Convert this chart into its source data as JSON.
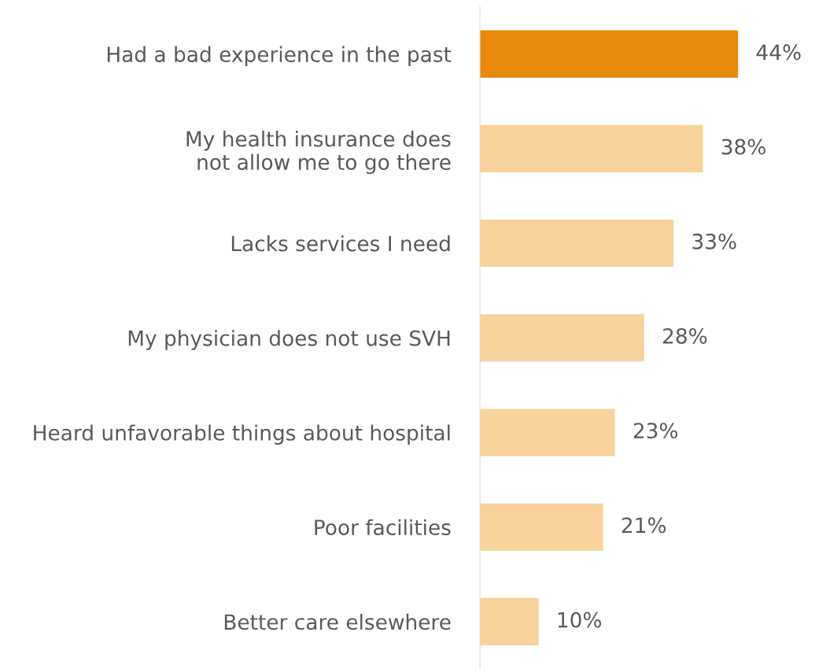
{
  "chart_data": {
    "type": "bar",
    "orientation": "horizontal",
    "categories": [
      "Had a bad experience in the past",
      "My health insurance does\nnot allow me to go there",
      "Lacks services I need",
      "My physician does not use SVH",
      "Heard unfavorable things about hospital",
      "Poor facilities",
      "Better care elsewhere"
    ],
    "values": [
      44,
      38,
      33,
      28,
      23,
      21,
      10
    ],
    "value_labels": [
      "44%",
      "38%",
      "33%",
      "28%",
      "23%",
      "21%",
      "10%"
    ],
    "colors": [
      "#e8890c",
      "#f8d29b",
      "#f8d29b",
      "#f8d29b",
      "#f8d29b",
      "#f8d29b",
      "#f8d29b"
    ],
    "tick_labels": "y",
    "grid": false,
    "legend": false
  }
}
